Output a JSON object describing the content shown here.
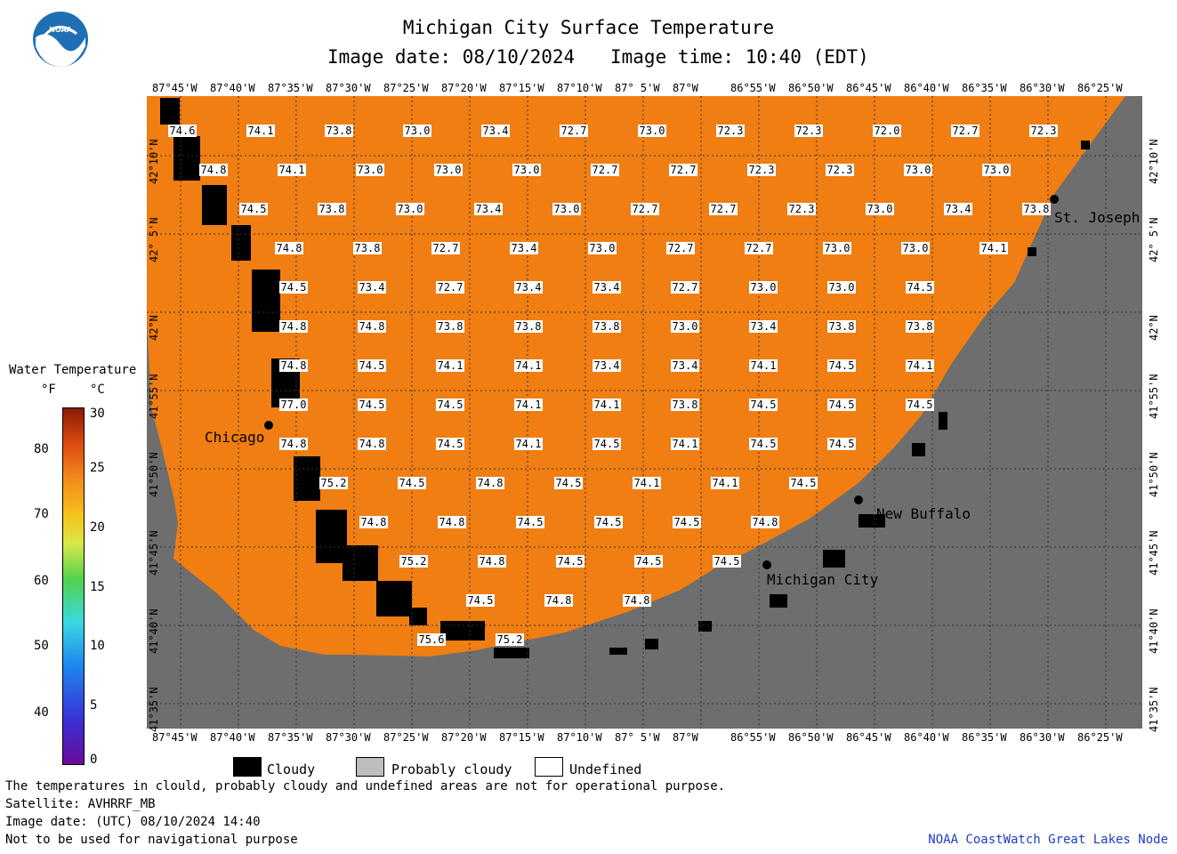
{
  "header": {
    "title": "Michigan City Surface Temperature",
    "image_date_label": "Image date: 08/10/2024",
    "image_time_label": "Image time: 10:40 (EDT)"
  },
  "logo": {
    "text": "NOAA",
    "color": "#1f6fb5"
  },
  "colors": {
    "land": "#6e6e6e",
    "water": "#f07e12",
    "cloudy": "#000000",
    "probably_cloudy": "#bdbdbd",
    "undefined": "#ffffff",
    "footer_credit": "#1c3fc4"
  },
  "longitude_ticks": [
    "87°45'W",
    "87°40'W",
    "87°35'W",
    "87°30'W",
    "87°25'W",
    "87°20'W",
    "87°15'W",
    "87°10'W",
    "87° 5'W",
    "87°W",
    "86°55'W",
    "86°50'W",
    "86°45'W",
    "86°40'W",
    "86°35'W",
    "86°30'W",
    "86°25'W"
  ],
  "latitude_ticks": [
    "42°10'N",
    "42° 5'N",
    "42°N",
    "41°55'N",
    "41°50'N",
    "41°45'N",
    "41°40'N",
    "41°35'N"
  ],
  "places": [
    {
      "name": "St. Joseph"
    },
    {
      "name": "Chicago"
    },
    {
      "name": "New Buffalo"
    },
    {
      "name": "Michigan City"
    }
  ],
  "temperature_rows": [
    [
      "74.6",
      "74.1",
      "73.8",
      "73.0",
      "73.4",
      "72.7",
      "73.0",
      "72.3",
      "72.3",
      "72.0",
      "72.7",
      "72.3"
    ],
    [
      "74.8",
      "74.1",
      "73.0",
      "73.0",
      "73.0",
      "72.7",
      "72.7",
      "72.3",
      "72.3",
      "73.0",
      "73.0"
    ],
    [
      "74.5",
      "73.8",
      "73.0",
      "73.4",
      "73.0",
      "72.7",
      "72.7",
      "72.3",
      "73.0",
      "73.4",
      "73.8"
    ],
    [
      "74.8",
      "73.8",
      "72.7",
      "73.4",
      "73.0",
      "72.7",
      "72.7",
      "73.0",
      "73.0",
      "74.1"
    ],
    [
      "74.5",
      "73.4",
      "72.7",
      "73.4",
      "73.4",
      "72.7",
      "73.0",
      "73.0",
      "74.5"
    ],
    [
      "74.8",
      "74.8",
      "73.8",
      "73.8",
      "73.8",
      "73.0",
      "73.4",
      "73.8",
      "73.8"
    ],
    [
      "74.8",
      "74.5",
      "74.1",
      "74.1",
      "73.4",
      "73.4",
      "74.1",
      "74.5",
      "74.1"
    ],
    [
      "77.0",
      "74.5",
      "74.5",
      "74.1",
      "74.1",
      "73.8",
      "74.5",
      "74.5",
      "74.5"
    ],
    [
      "74.8",
      "74.8",
      "74.5",
      "74.1",
      "74.5",
      "74.1",
      "74.5",
      "74.5"
    ],
    [
      "75.2",
      "74.5",
      "74.8",
      "74.5",
      "74.1",
      "74.1",
      "74.5"
    ],
    [
      "74.8",
      "74.8",
      "74.5",
      "74.5",
      "74.5",
      "74.8"
    ],
    [
      "75.2",
      "74.8",
      "74.5",
      "74.5",
      "74.5"
    ],
    [
      "74.5",
      "74.8",
      "74.8"
    ],
    [
      "75.6",
      "75.2"
    ]
  ],
  "legend": {
    "title": "Water Temperature",
    "unit_f": "°F",
    "unit_c": "°C",
    "f_labels": [
      "80",
      "70",
      "60",
      "50",
      "40"
    ],
    "c_labels": [
      "30",
      "25",
      "20",
      "15",
      "10",
      "5",
      "0"
    ]
  },
  "key": {
    "cloudy": "Cloudy",
    "probably_cloudy": "Probably cloudy",
    "undefined": "Undefined"
  },
  "footer": {
    "line1": "The temperatures in clould, probably cloudy and undefined areas are not for operational purpose.",
    "line2": "Satellite: AVHRRF_MB",
    "line3": "Image date: (UTC) 08/10/2024  14:40",
    "line4": "Not to be used for navigational purpose",
    "credit": "NOAA CoastWatch Great Lakes Node"
  }
}
